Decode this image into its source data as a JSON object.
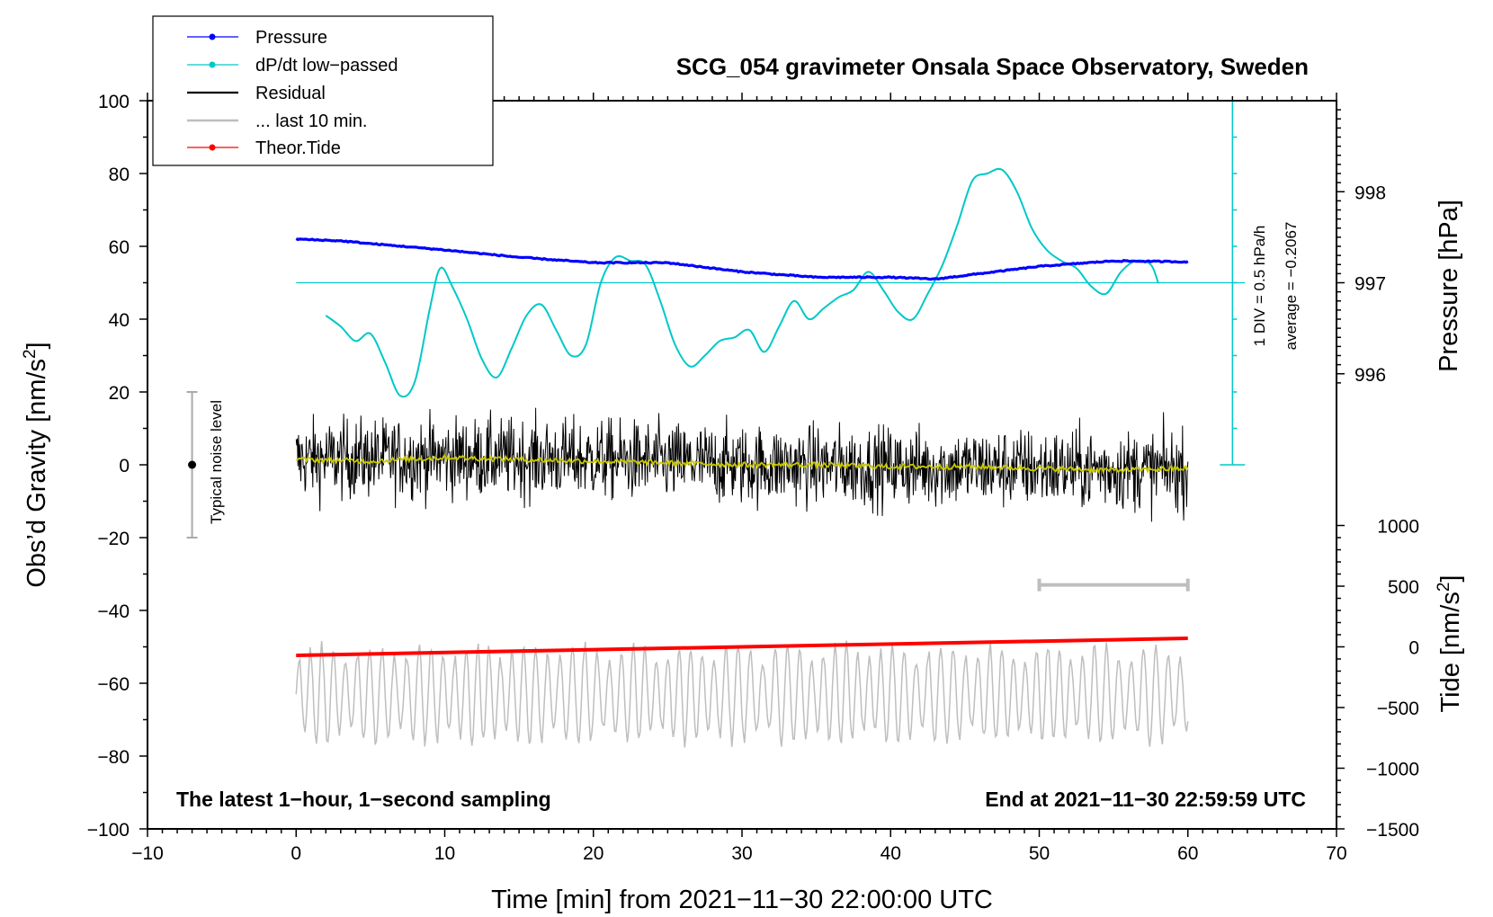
{
  "chart_data": {
    "type": "line",
    "title": "SCG_054 gravimeter Onsala Space Observatory, Sweden",
    "xlabel": "Time [min] from 2021−11−30 22:00:00 UTC",
    "ylabel_left": "Obs’d Gravity [nm/s",
    "ylabel_left_sup": "2",
    "ylabel_left_end": "]",
    "ylabel_right_top": "Pressure [hPa]",
    "ylabel_right_bottom": "Tide [nm/s",
    "ylabel_right_bottom_sup": "2",
    "ylabel_right_bottom_end": "]",
    "xlim": [
      -10,
      70
    ],
    "ylim": [
      -100,
      100
    ],
    "x_ticks": [
      -10,
      0,
      10,
      20,
      30,
      40,
      50,
      60,
      70
    ],
    "x_tick_labels": [
      "−10",
      "0",
      "10",
      "20",
      "30",
      "40",
      "50",
      "60",
      "70"
    ],
    "y_ticks": [
      -100,
      -80,
      -60,
      -40,
      -20,
      0,
      20,
      40,
      60,
      80,
      100
    ],
    "y_tick_labels": [
      "−100",
      "−80",
      "−60",
      "−40",
      "−20",
      "0",
      "20",
      "40",
      "60",
      "80",
      "100"
    ],
    "pressure_axis": {
      "ticks": [
        996,
        997,
        998
      ],
      "tick_labels": [
        "996",
        "997",
        "998"
      ],
      "reference": {
        "value_hpa": 997,
        "left_value": 50,
        "left_units_per_hpa": 25
      }
    },
    "tide_axis": {
      "ticks": [
        -1500,
        -1000,
        -500,
        0,
        500,
        1000
      ],
      "tick_labels": [
        "−1500",
        "−1000",
        "−500",
        "0",
        "500",
        "1000"
      ],
      "reference": {
        "value": 0,
        "left_value": -50,
        "left_units_per_unit": 0.03333
      }
    },
    "legend": {
      "position": "top-left",
      "items": [
        {
          "label": "Pressure",
          "color": "#0000ff",
          "marker": true
        },
        {
          "label": "dP/dt low−passed",
          "color": "#00c8c8",
          "marker": true
        },
        {
          "label": "Residual",
          "color": "#000000",
          "marker": false
        },
        {
          "label": "... last 10 min.",
          "color": "#bebebe",
          "marker": false
        },
        {
          "label": "Theor.Tide",
          "color": "#ff0000",
          "marker": true
        }
      ]
    },
    "series": [
      {
        "name": "Pressure",
        "color": "#0000ff",
        "units": "hPa",
        "x": [
          0,
          3,
          5,
          10,
          15,
          20,
          25,
          30,
          35,
          40,
          43,
          45,
          50,
          55,
          60
        ],
        "y": [
          997.48,
          997.46,
          997.43,
          997.36,
          997.28,
          997.22,
          997.22,
          997.12,
          997.06,
          997.06,
          997.04,
          997.08,
          997.18,
          997.24,
          997.23
        ]
      },
      {
        "name": "dP/dt low−passed",
        "color": "#00c8c8",
        "units": "Obs'd Gravity axis units",
        "x": [
          2,
          3,
          4,
          5,
          6,
          7,
          8,
          9,
          9.7,
          10.5,
          11.5,
          12.5,
          13.5,
          14.5,
          15.5,
          16.5,
          17.5,
          18.5,
          19.5,
          20.5,
          21.5,
          22.5,
          23.5,
          24.5,
          25.5,
          26.5,
          27.5,
          28.5,
          29.5,
          30.5,
          31.5,
          32.5,
          33.5,
          34.5,
          35.5,
          36.5,
          37.5,
          38.5,
          39.5,
          40.5,
          41.5,
          42.5,
          43.5,
          44.5,
          45.5,
          46.5,
          47.5,
          48.5,
          49.5,
          50.5,
          51.5,
          52.5,
          53.5,
          54.5,
          55.5,
          56.5,
          57.5,
          58
        ],
        "y": [
          41,
          38,
          34,
          36,
          28,
          19,
          23,
          43,
          54,
          49,
          40,
          29,
          24,
          32,
          41,
          44,
          37,
          30,
          33,
          50,
          57,
          56,
          55,
          45,
          33,
          27,
          30,
          34,
          35,
          37,
          31,
          38,
          45,
          40,
          43,
          46,
          48,
          53,
          48,
          42,
          40,
          47,
          55,
          66,
          78,
          80,
          81,
          75,
          65,
          59,
          56,
          54,
          49,
          47,
          53,
          56,
          55,
          50
        ]
      },
      {
        "name": "Residual",
        "color": "#000000",
        "units": "nm/s2",
        "x_range": [
          0,
          60
        ],
        "approx_amplitude": 12,
        "mean_trend": {
          "x": [
            0,
            10,
            20,
            30,
            40,
            50,
            60
          ],
          "y": [
            1.5,
            2,
            1.5,
            0,
            -0.5,
            -1,
            -1.5
          ]
        }
      },
      {
        "name": "Residual running mean",
        "color": "#c8c800",
        "units": "nm/s2",
        "x": [
          0,
          5,
          10,
          15,
          20,
          25,
          30,
          35,
          40,
          45,
          50,
          55,
          60
        ],
        "y": [
          1.5,
          1,
          2,
          1.5,
          1,
          0.5,
          0,
          0,
          -0.5,
          -0.5,
          -1,
          -1.5,
          -1
        ]
      },
      {
        "name": "... last 10 min.",
        "color": "#bebebe",
        "units": "nm/s2",
        "x_range": [
          0,
          60
        ],
        "approx_center": -63,
        "approx_amplitude": 12
      },
      {
        "name": "Theor.Tide",
        "color": "#ff0000",
        "units": "nm/s2",
        "x": [
          0,
          60
        ],
        "y": [
          -70,
          70
        ]
      }
    ],
    "annotations": {
      "noise_label": "Typical noise level",
      "noise_bar": {
        "x": -7,
        "center": 0,
        "low": -20,
        "high": 20
      },
      "scale_bar": {
        "x1": 50,
        "x2": 60,
        "y": -33
      },
      "div_label": "1 DIV = 0.5 hPa/h",
      "average_label": "average = −0.2067",
      "dpdt_scale_axis": {
        "x": 63,
        "low": 0,
        "high": 100,
        "divisions": 10,
        "zero_line": 50
      },
      "left_bottom_text": "The latest 1−hour, 1−second sampling",
      "right_bottom_text": "End at 2021−11−30 22:59:59 UTC"
    }
  }
}
